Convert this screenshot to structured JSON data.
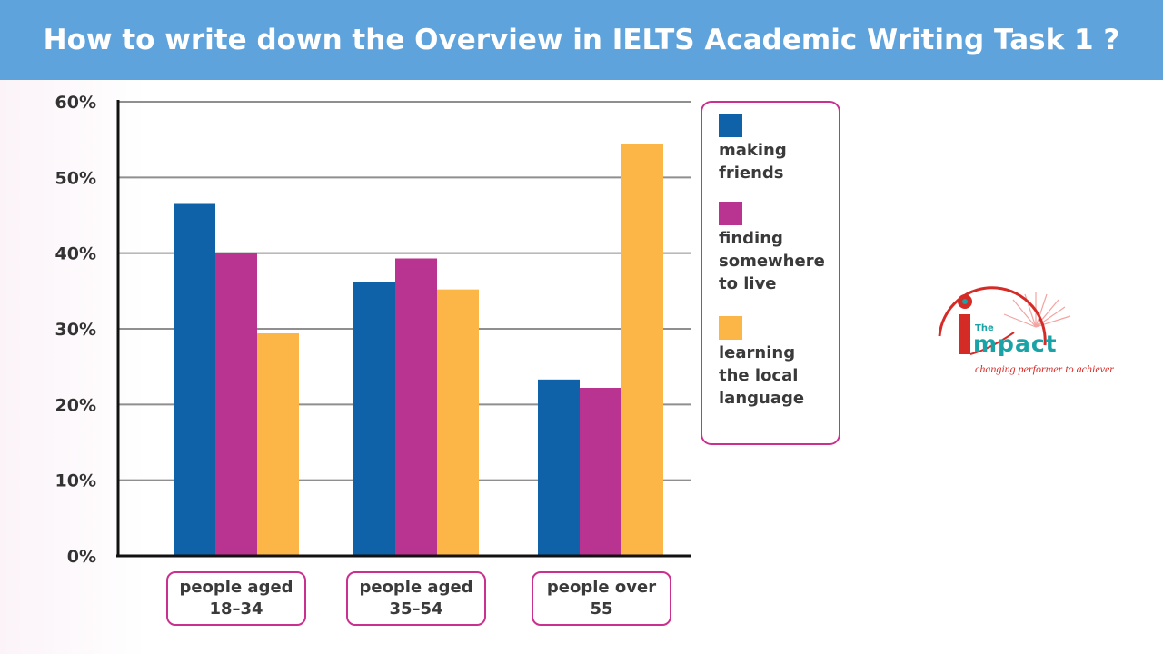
{
  "banner": {
    "title": "How to write down the Overview in  IELTS Academic Writing Task 1 ?",
    "background": "#5fa3dc"
  },
  "chart_data": {
    "type": "bar",
    "categories": [
      "people aged 18–34",
      "people aged 35–54",
      "people over 55"
    ],
    "category_lines": [
      [
        "people aged",
        "18–34"
      ],
      [
        "people aged",
        "35–54"
      ],
      [
        "people over",
        "55"
      ]
    ],
    "series": [
      {
        "name": "making friends",
        "name_lines": [
          "making",
          "friends"
        ],
        "color": "#0f62a8",
        "values": [
          46.5,
          36.2,
          23.3
        ]
      },
      {
        "name": "finding somewhere to live",
        "name_lines": [
          "finding",
          "somewhere",
          "to live"
        ],
        "color": "#b93390",
        "values": [
          40.0,
          39.3,
          22.2
        ]
      },
      {
        "name": "learning the local language",
        "name_lines": [
          "learning",
          "the local",
          "language"
        ],
        "color": "#fbb647",
        "values": [
          29.4,
          35.2,
          54.4
        ]
      }
    ],
    "yticks": [
      "0%",
      "10%",
      "20%",
      "30%",
      "40%",
      "50%",
      "60%"
    ],
    "ylim": [
      0,
      60
    ],
    "grid": true,
    "legend_position": "right",
    "title": "",
    "xlabel": "",
    "ylabel": ""
  },
  "logo": {
    "the": "The",
    "word": "mpact",
    "tagline": "changing performer to achiever",
    "accent": "#d52b27",
    "teal": "#1aa3a6"
  }
}
